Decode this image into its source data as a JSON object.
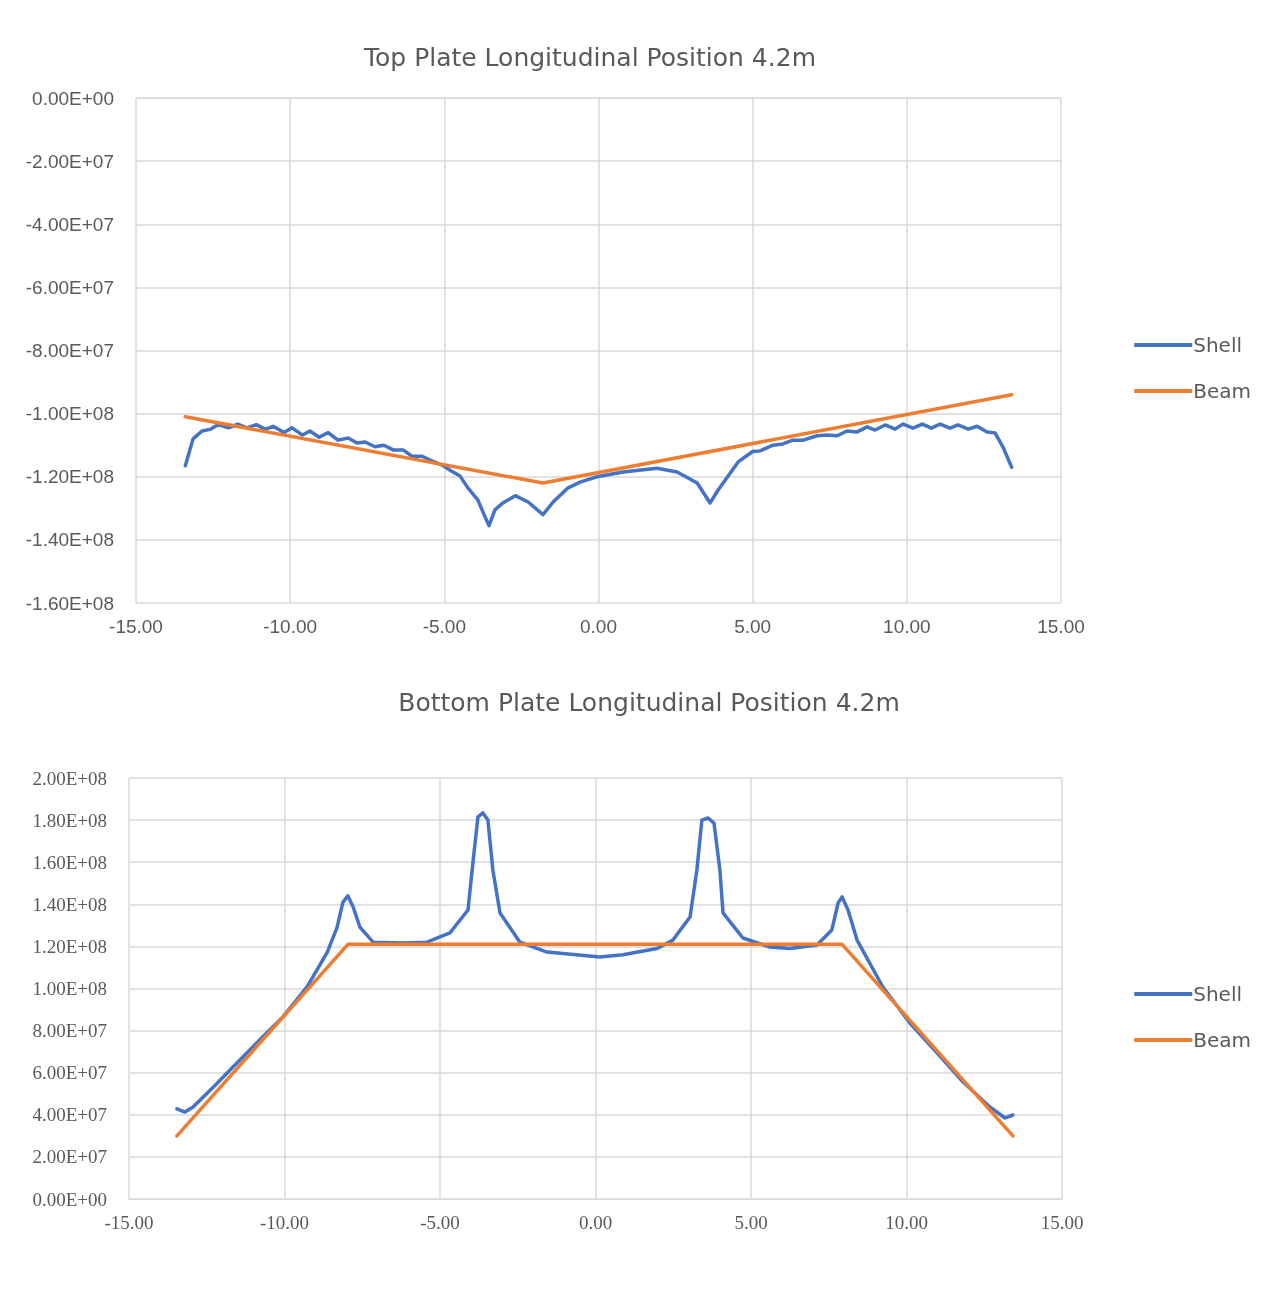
{
  "chart_data": [
    {
      "type": "line",
      "title": "Top Plate Longitudinal Position 4.2m",
      "legend": "right",
      "grid": true,
      "marker": "none",
      "xlim": [
        -15,
        15
      ],
      "xticks": [
        {
          "value": -15,
          "label": "-15.00"
        },
        {
          "value": -10,
          "label": "-10.00"
        },
        {
          "value": -5,
          "label": "-5.00"
        },
        {
          "value": 0,
          "label": "0.00"
        },
        {
          "value": 5,
          "label": "5.00"
        },
        {
          "value": 10,
          "label": "10.00"
        },
        {
          "value": 15,
          "label": "15.00"
        }
      ],
      "ylim": [
        -160000000,
        0
      ],
      "yticks": [
        {
          "value": 0,
          "label": "0.00E+00"
        },
        {
          "value": -20000000,
          "label": "-2.00E+07"
        },
        {
          "value": -40000000,
          "label": "-4.00E+07"
        },
        {
          "value": -60000000,
          "label": "-6.00E+07"
        },
        {
          "value": -80000000,
          "label": "-8.00E+07"
        },
        {
          "value": -100000000,
          "label": "-1.00E+08"
        },
        {
          "value": -120000000,
          "label": "-1.20E+08"
        },
        {
          "value": -140000000,
          "label": "-1.40E+08"
        },
        {
          "value": -160000000,
          "label": "-1.60E+08"
        }
      ],
      "series": [
        {
          "name": "Shell",
          "color": "#4472c4",
          "x": [
            -13.4,
            -13.15,
            -12.86,
            -12.6,
            -12.34,
            -12.0,
            -11.7,
            -11.4,
            -11.1,
            -10.8,
            -10.55,
            -10.2,
            -9.94,
            -9.6,
            -9.36,
            -9.06,
            -8.77,
            -8.45,
            -8.12,
            -7.83,
            -7.57,
            -7.25,
            -6.96,
            -6.66,
            -6.34,
            -6.05,
            -5.72,
            -5.46,
            -5.07,
            -4.8,
            -4.49,
            -4.23,
            -3.91,
            -3.68,
            -3.55,
            -3.36,
            -3.1,
            -2.7,
            -2.28,
            -1.8,
            -1.47,
            -1.0,
            -0.6,
            -0.05,
            0.8,
            1.9,
            2.55,
            3.2,
            3.62,
            3.88,
            4.53,
            5.0,
            5.24,
            5.66,
            5.98,
            6.3,
            6.64,
            7.09,
            7.41,
            7.74,
            8.06,
            8.39,
            8.71,
            8.97,
            9.3,
            9.62,
            9.88,
            10.2,
            10.5,
            10.8,
            11.08,
            11.4,
            11.66,
            11.99,
            12.28,
            12.6,
            12.86,
            13.12,
            13.4
          ],
          "values": [
            -116500000,
            -108000000,
            -105500000,
            -105000000,
            -103500000,
            -104500000,
            -103300000,
            -104500000,
            -103500000,
            -105000000,
            -104000000,
            -106000000,
            -104500000,
            -106800000,
            -105500000,
            -107500000,
            -106000000,
            -108400000,
            -107700000,
            -109300000,
            -109000000,
            -110500000,
            -110000000,
            -111500000,
            -111500000,
            -113500000,
            -113500000,
            -114700000,
            -116300000,
            -118000000,
            -119800000,
            -123600000,
            -127400000,
            -132700000,
            -135500000,
            -130500000,
            -128300000,
            -126000000,
            -128000000,
            -132000000,
            -128000000,
            -123600000,
            -121700000,
            -120000000,
            -118500000,
            -117300000,
            -118500000,
            -122000000,
            -128300000,
            -124200000,
            -115300000,
            -112000000,
            -111800000,
            -110000000,
            -109600000,
            -108400000,
            -108400000,
            -107000000,
            -106800000,
            -107000000,
            -105500000,
            -105800000,
            -104200000,
            -105200000,
            -103600000,
            -104900000,
            -103300000,
            -104600000,
            -103300000,
            -104600000,
            -103300000,
            -104600000,
            -103600000,
            -104900000,
            -104000000,
            -105800000,
            -106100000,
            -110600000,
            -117000000
          ]
        },
        {
          "name": "Beam",
          "color": "#ed7d31",
          "x": [
            -13.4,
            -1.8,
            13.4
          ],
          "values": [
            -101000000,
            -122000000,
            -94000000
          ]
        }
      ]
    },
    {
      "type": "line",
      "title": "Bottom Plate Longitudinal Position 4.2m",
      "legend": "right",
      "grid": true,
      "marker": "none",
      "xlim": [
        -15,
        15
      ],
      "xticks": [
        {
          "value": -15,
          "label": "-15.00"
        },
        {
          "value": -10,
          "label": "-10.00"
        },
        {
          "value": -5,
          "label": "-5.00"
        },
        {
          "value": 0,
          "label": "0.00"
        },
        {
          "value": 5,
          "label": "5.00"
        },
        {
          "value": 10,
          "label": "10.00"
        },
        {
          "value": 15,
          "label": "15.00"
        }
      ],
      "ylim": [
        0,
        200000000
      ],
      "yticks": [
        {
          "value": 0,
          "label": "0.00E+00"
        },
        {
          "value": 20000000,
          "label": "2.00E+07"
        },
        {
          "value": 40000000,
          "label": "4.00E+07"
        },
        {
          "value": 60000000,
          "label": "6.00E+07"
        },
        {
          "value": 80000000,
          "label": "8.00E+07"
        },
        {
          "value": 100000000,
          "label": "1.00E+08"
        },
        {
          "value": 120000000,
          "label": "1.20E+08"
        },
        {
          "value": 140000000,
          "label": "1.40E+08"
        },
        {
          "value": 160000000,
          "label": "1.60E+08"
        },
        {
          "value": 180000000,
          "label": "1.80E+08"
        },
        {
          "value": 200000000,
          "label": "2.00E+08"
        }
      ],
      "series": [
        {
          "name": "Shell",
          "color": "#4472c4",
          "x": [
            -13.46,
            -13.2,
            -12.94,
            -12.3,
            -11.53,
            -10.8,
            -10.05,
            -9.28,
            -8.63,
            -8.31,
            -8.12,
            -7.96,
            -7.8,
            -7.57,
            -7.15,
            -6.19,
            -5.42,
            -4.68,
            -4.1,
            -3.94,
            -3.78,
            -3.62,
            -3.46,
            -3.3,
            -3.07,
            -2.43,
            -1.56,
            0.14,
            0.88,
            1.98,
            2.49,
            3.04,
            3.26,
            3.42,
            3.62,
            3.81,
            4.0,
            4.1,
            4.74,
            5.61,
            6.25,
            7.12,
            7.6,
            7.8,
            7.93,
            8.12,
            8.41,
            9.24,
            10.11,
            10.98,
            11.82,
            12.68,
            13.17,
            13.42
          ],
          "values": [
            42800000,
            41300000,
            43700000,
            53000000,
            64600000,
            75500000,
            86500000,
            100700000,
            117000000,
            129000000,
            141000000,
            144000000,
            139000000,
            129000000,
            122000000,
            121600000,
            122000000,
            126400000,
            137300000,
            160000000,
            181500000,
            183400000,
            180000000,
            156300000,
            135900000,
            122000000,
            117300000,
            115000000,
            116000000,
            119000000,
            123000000,
            134000000,
            156300000,
            180000000,
            181000000,
            178600000,
            156300000,
            135900000,
            124000000,
            119700000,
            119000000,
            120700000,
            127800000,
            140600000,
            143500000,
            137300000,
            123000000,
            100700000,
            83600000,
            69400000,
            55600000,
            43700000,
            38500000,
            39900000
          ]
        },
        {
          "name": "Beam",
          "color": "#ed7d31",
          "x": [
            -13.46,
            -7.96,
            7.93,
            13.42
          ],
          "values": [
            30000000,
            121000000,
            121000000,
            30000000
          ]
        }
      ]
    }
  ]
}
